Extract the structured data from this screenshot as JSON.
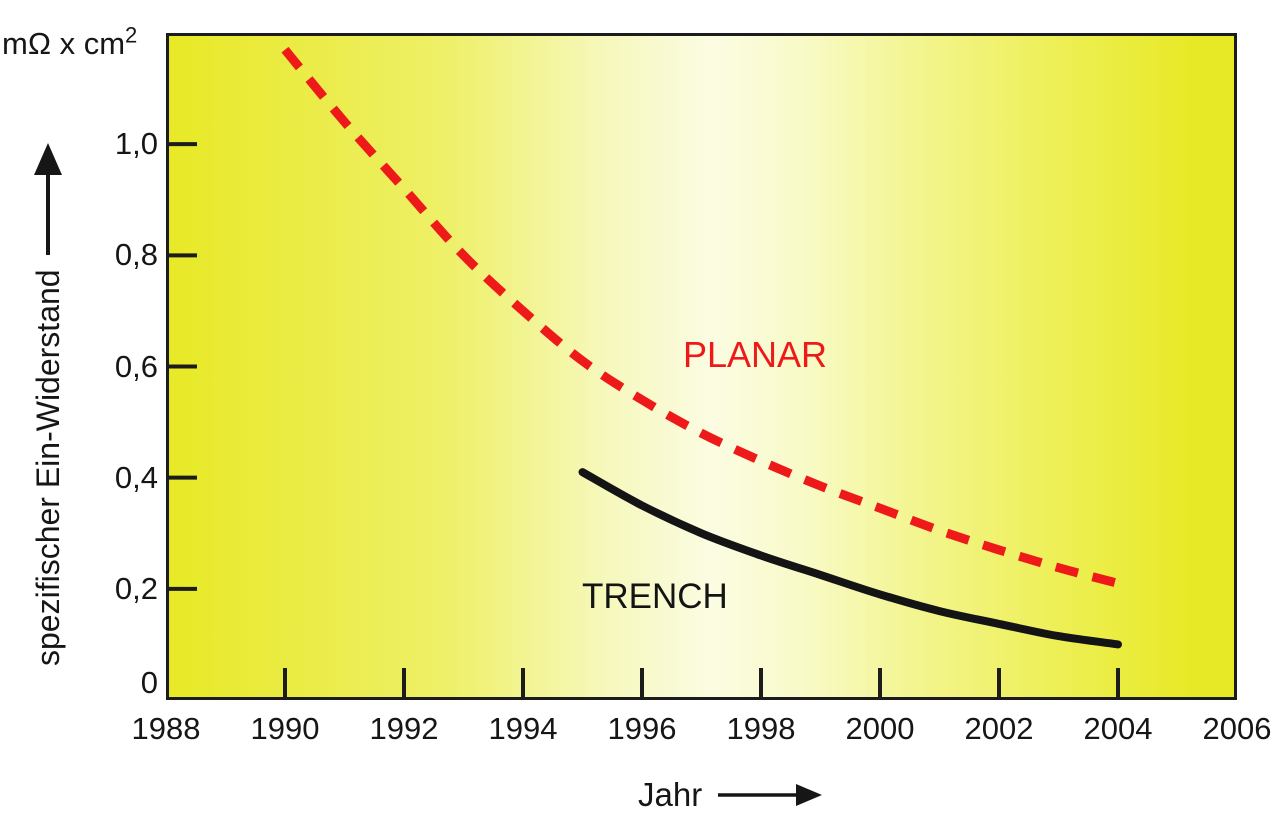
{
  "unit_label": {
    "text": "mΩ x cm",
    "sup": "2"
  },
  "y_axis": {
    "label": "spezifischer Ein-Widerstand"
  },
  "x_axis": {
    "label": "Jahr"
  },
  "chart_data": {
    "type": "line",
    "title": "",
    "xlabel": "Jahr",
    "ylabel": "spezifischer Ein-Widerstand (mΩ x cm²)",
    "xlim": [
      1988,
      2006
    ],
    "ylim": [
      0,
      1.2
    ],
    "grid": false,
    "legend": "inline-labels",
    "x_ticks": [
      1988,
      1990,
      1992,
      1994,
      1996,
      1998,
      2000,
      2002,
      2004,
      2006
    ],
    "y_ticks": [
      {
        "value": 0,
        "label": "0"
      },
      {
        "value": 0.2,
        "label": "0,2"
      },
      {
        "value": 0.4,
        "label": "0,4"
      },
      {
        "value": 0.6,
        "label": "0,6"
      },
      {
        "value": 0.8,
        "label": "0,8"
      },
      {
        "value": 1.0,
        "label": "1,0"
      }
    ],
    "series": [
      {
        "name": "PLANAR",
        "color": "#ee1a1a",
        "line_style": "dashed",
        "points": [
          [
            1990,
            1.17
          ],
          [
            1991,
            1.04
          ],
          [
            1992,
            0.92
          ],
          [
            1993,
            0.8
          ],
          [
            1994,
            0.7
          ],
          [
            1995,
            0.61
          ],
          [
            1996,
            0.54
          ],
          [
            1997,
            0.48
          ],
          [
            1998,
            0.43
          ],
          [
            1999,
            0.385
          ],
          [
            2000,
            0.345
          ],
          [
            2001,
            0.305
          ],
          [
            2002,
            0.27
          ],
          [
            2003,
            0.238
          ],
          [
            2004,
            0.21
          ]
        ]
      },
      {
        "name": "TRENCH",
        "color": "#141414",
        "line_style": "solid",
        "points": [
          [
            1995,
            0.41
          ],
          [
            1996,
            0.35
          ],
          [
            1997,
            0.3
          ],
          [
            1998,
            0.26
          ],
          [
            1999,
            0.225
          ],
          [
            2000,
            0.19
          ],
          [
            2001,
            0.16
          ],
          [
            2002,
            0.137
          ],
          [
            2003,
            0.115
          ],
          [
            2004,
            0.1
          ]
        ]
      }
    ],
    "axis_color": "#1c1c1c",
    "background": {
      "type": "horizontal-gradient",
      "colors": [
        "#e8e926",
        "#eef068",
        "#fbfce2",
        "#f3f590",
        "#e8e926"
      ]
    }
  }
}
